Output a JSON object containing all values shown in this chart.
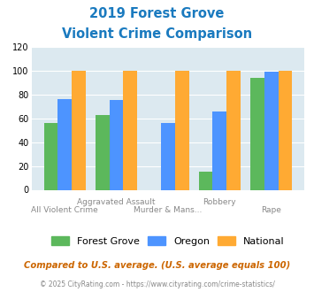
{
  "title_line1": "2019 Forest Grove",
  "title_line2": "Violent Crime Comparison",
  "title_color": "#1a7abf",
  "categories": [
    "All Violent Crime",
    "Aggravated Assault",
    "Murder & Mans...",
    "Robbery",
    "Rape"
  ],
  "forest_grove": [
    56,
    63,
    0,
    15,
    94
  ],
  "oregon": [
    76,
    75,
    56,
    66,
    99
  ],
  "national": [
    100,
    100,
    100,
    100,
    100
  ],
  "color_fg": "#5cb85c",
  "color_or": "#4d94ff",
  "color_nat": "#ffaa33",
  "ylim": [
    0,
    120
  ],
  "yticks": [
    0,
    20,
    40,
    60,
    80,
    100,
    120
  ],
  "bg_color": "#dce9f0",
  "legend_labels": [
    "Forest Grove",
    "Oregon",
    "National"
  ],
  "footnote1": "Compared to U.S. average. (U.S. average equals 100)",
  "footnote2": "© 2025 CityRating.com - https://www.cityrating.com/crime-statistics/",
  "footnote1_color": "#cc6600",
  "footnote2_color": "#888888",
  "top_row_labels": [
    "",
    "Aggravated Assault",
    "",
    "Robbery",
    ""
  ],
  "bottom_row_labels": [
    "All Violent Crime",
    "",
    "Murder & Mans...",
    "",
    "Rape"
  ]
}
